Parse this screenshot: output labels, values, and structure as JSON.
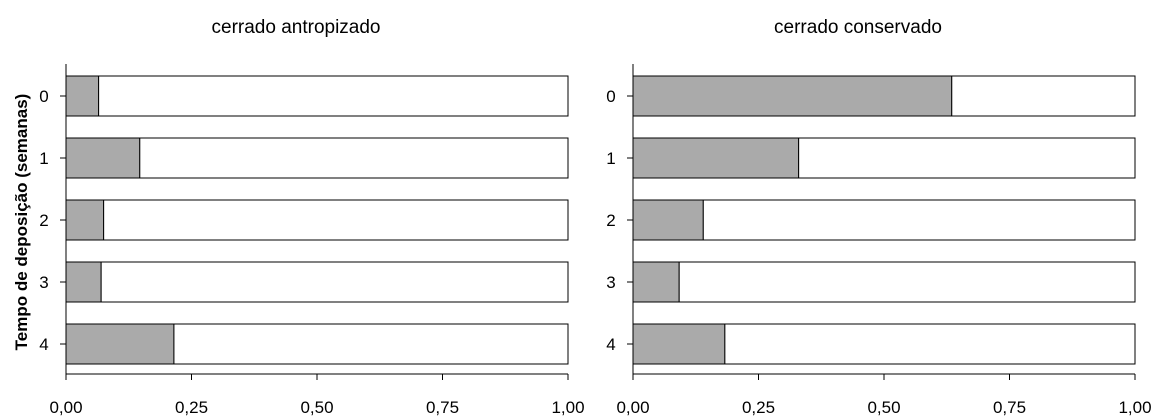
{
  "chart_data": [
    {
      "type": "bar",
      "orientation": "horizontal",
      "stacked": true,
      "title": "cerrado antropizado",
      "ylabel": "Tempo de deposição (semanas)",
      "xlabel": "",
      "categories": [
        "0",
        "1",
        "2",
        "3",
        "4"
      ],
      "series": [
        {
          "values": [
            0.065,
            0.147,
            0.075,
            0.07,
            0.215
          ],
          "color": "#aaaaaa"
        },
        {
          "values": [
            0.935,
            0.853,
            0.925,
            0.93,
            0.785
          ],
          "color": "#ffffff"
        }
      ],
      "xlim": [
        0,
        1
      ],
      "xticks": [
        0,
        0.25,
        0.5,
        0.75,
        1
      ],
      "xticklabels": [
        "0,00",
        "0,25",
        "0,50",
        "0,75",
        "1,00"
      ],
      "grid": false,
      "legend": false
    },
    {
      "type": "bar",
      "orientation": "horizontal",
      "stacked": true,
      "title": "cerrado conservado",
      "ylabel": "",
      "xlabel": "",
      "categories": [
        "0",
        "1",
        "2",
        "3",
        "4"
      ],
      "series": [
        {
          "values": [
            0.635,
            0.33,
            0.14,
            0.092,
            0.183
          ],
          "color": "#aaaaaa"
        },
        {
          "values": [
            0.365,
            0.67,
            0.86,
            0.908,
            0.817
          ],
          "color": "#ffffff"
        }
      ],
      "xlim": [
        0,
        1
      ],
      "xticks": [
        0,
        0.25,
        0.5,
        0.75,
        1
      ],
      "xticklabels": [
        "0,00",
        "0,25",
        "0,50",
        "0,75",
        "1,00"
      ],
      "grid": false,
      "legend": false
    }
  ]
}
